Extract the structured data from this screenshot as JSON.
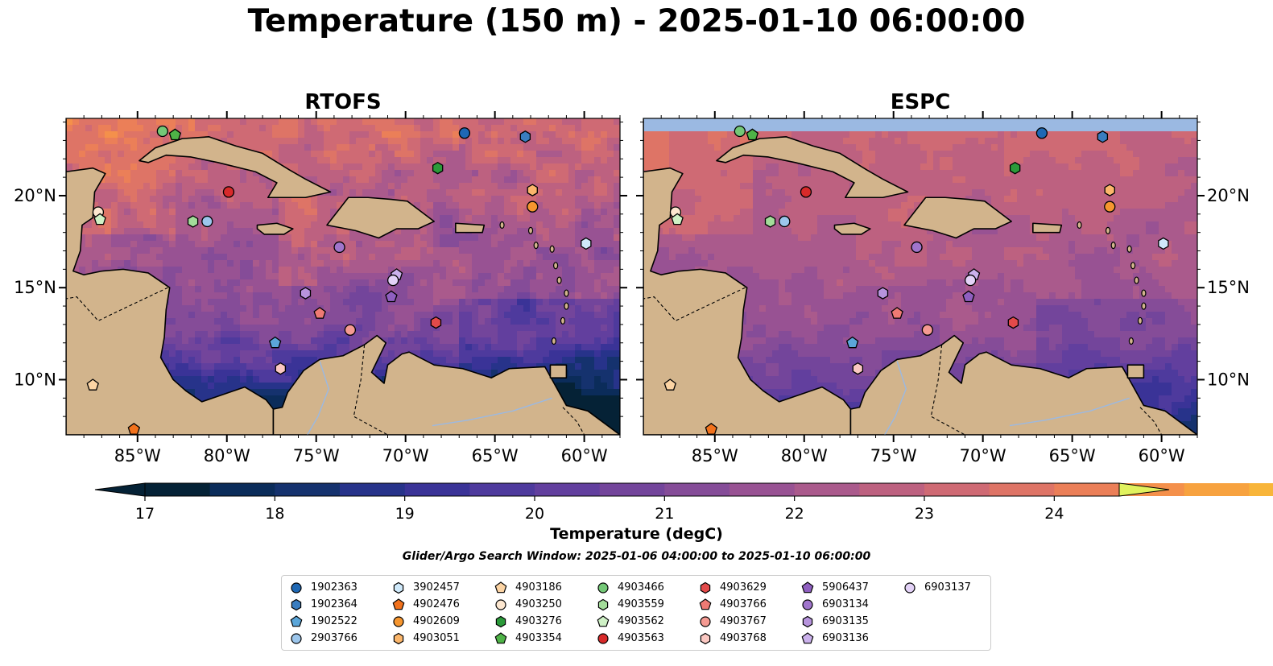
{
  "title": "Temperature (150 m) - 2025-01-10 06:00:00",
  "chart_data": {
    "type": "heatmap",
    "title": "Temperature (150 m) - 2025-01-10 06:00:00",
    "panels": [
      {
        "name": "RTOFS",
        "x_ticks": [
          "85°W",
          "80°W",
          "75°W",
          "70°W",
          "65°W",
          "60°W"
        ],
        "y_ticks_left": [
          "20°N",
          "15°N",
          "10°N"
        ],
        "y_ticks_right": []
      },
      {
        "name": "ESPC",
        "x_ticks": [
          "85°W",
          "80°W",
          "75°W",
          "70°W",
          "65°W",
          "60°W"
        ],
        "y_ticks_left": [],
        "y_ticks_right": [
          "20°N",
          "15°N",
          "10°N"
        ]
      }
    ],
    "lon_range": [
      -89,
      -58
    ],
    "lat_range": [
      7,
      24.2
    ],
    "colorbar": {
      "label": "Temperature (degC)",
      "min": 17,
      "max": 24.5,
      "step": 0.5,
      "ticks": [
        "17",
        "18",
        "19",
        "20",
        "21",
        "22",
        "23",
        "24"
      ],
      "extend": "both",
      "colors": [
        "#052236",
        "#0b2c5a",
        "#15326e",
        "#27338a",
        "#3a3397",
        "#4e3a9d",
        "#623f9e",
        "#73459b",
        "#854c98",
        "#985293",
        "#aa5a8c",
        "#bd6180",
        "#cf6a74",
        "#de7466",
        "#eb7f58",
        "#f4904b",
        "#f7a23f",
        "#f8b53a",
        "#f4c93f",
        "#edde4f",
        "#e1f25e"
      ],
      "below_color": "#052236",
      "above_color": "#e1f25e"
    },
    "subtitle": "Glider/Argo Search Window: 2025-01-06 04:00:00 to 2025-01-10 06:00:00",
    "floats": [
      {
        "id": "1902363",
        "marker": "circle",
        "color": "#1f68b4",
        "lon": -66.7,
        "lat": 23.4
      },
      {
        "id": "1902364",
        "marker": "hexagon",
        "color": "#3a7dc0",
        "lon": -63.3,
        "lat": 23.2
      },
      {
        "id": "1902522",
        "marker": "pentagon",
        "color": "#5ba6d9",
        "lon": -77.3,
        "lat": 12.0
      },
      {
        "id": "2903766",
        "marker": "circle",
        "color": "#9cc6ec",
        "lon": -81.1,
        "lat": 18.6
      },
      {
        "id": "3902457",
        "marker": "hexagon",
        "color": "#cfe9fa",
        "lon": -59.9,
        "lat": 17.4
      },
      {
        "id": "4902476",
        "marker": "pentagon",
        "color": "#f2721c",
        "lon": -85.2,
        "lat": 7.3
      },
      {
        "id": "4902609",
        "marker": "circle",
        "color": "#f6962f",
        "lon": -62.9,
        "lat": 19.4
      },
      {
        "id": "4903051",
        "marker": "hexagon",
        "color": "#fbb66b",
        "lon": -62.9,
        "lat": 20.3
      },
      {
        "id": "4903186",
        "marker": "pentagon",
        "color": "#fcd4a4",
        "lon": -87.5,
        "lat": 9.7
      },
      {
        "id": "4903250",
        "marker": "circle",
        "color": "#fde7d0",
        "lon": -87.2,
        "lat": 19.1
      },
      {
        "id": "4903276",
        "marker": "hexagon",
        "color": "#2b9a3a",
        "lon": -68.2,
        "lat": 21.5
      },
      {
        "id": "4903354",
        "marker": "pentagon",
        "color": "#4eb347",
        "lon": -82.9,
        "lat": 23.3
      },
      {
        "id": "4903466",
        "marker": "circle",
        "color": "#74c877",
        "lon": -83.6,
        "lat": 23.5
      },
      {
        "id": "4903559",
        "marker": "hexagon",
        "color": "#a3dc9a",
        "lon": -81.9,
        "lat": 18.6
      },
      {
        "id": "4903562",
        "marker": "pentagon",
        "color": "#cff1c6",
        "lon": -87.1,
        "lat": 18.7
      },
      {
        "id": "4903563",
        "marker": "circle",
        "color": "#d82a2a",
        "lon": -79.9,
        "lat": 20.2
      },
      {
        "id": "4903629",
        "marker": "hexagon",
        "color": "#e34a4a",
        "lon": -68.3,
        "lat": 13.1
      },
      {
        "id": "4903766",
        "marker": "pentagon",
        "color": "#ee7a74",
        "lon": -74.8,
        "lat": 13.6
      },
      {
        "id": "4903767",
        "marker": "circle",
        "color": "#f59a92",
        "lon": -73.1,
        "lat": 12.7
      },
      {
        "id": "4903768",
        "marker": "hexagon",
        "color": "#fbc8c2",
        "lon": -77.0,
        "lat": 10.6
      },
      {
        "id": "5906437",
        "marker": "pentagon",
        "color": "#8f5fc0",
        "lon": -70.8,
        "lat": 14.5
      },
      {
        "id": "6903134",
        "marker": "circle",
        "color": "#a075cc",
        "lon": -73.7,
        "lat": 17.2
      },
      {
        "id": "6903135",
        "marker": "hexagon",
        "color": "#b794dd",
        "lon": -75.6,
        "lat": 14.7
      },
      {
        "id": "6903136",
        "marker": "pentagon",
        "color": "#cbb1ec",
        "lon": -70.5,
        "lat": 15.7
      },
      {
        "id": "6903137",
        "marker": "circle",
        "color": "#e3d2f7",
        "lon": -70.7,
        "lat": 15.4
      }
    ]
  },
  "panel_titles": {
    "left": "RTOFS",
    "right": "ESPC"
  }
}
